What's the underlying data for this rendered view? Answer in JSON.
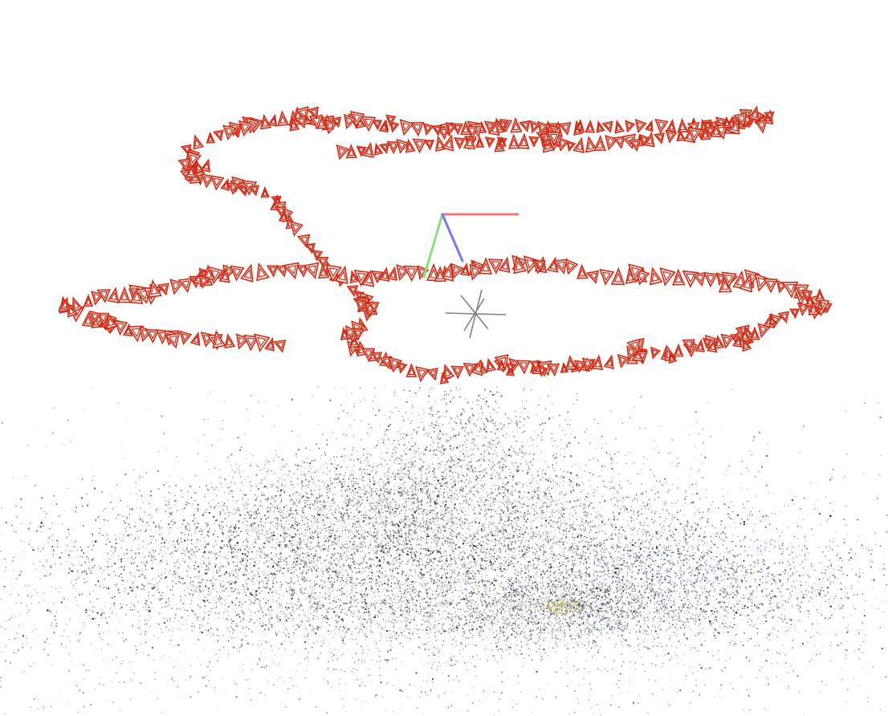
{
  "viewer": {
    "background": "#ffffff",
    "camera_color": "#d42a12",
    "axis_colors": {
      "x": "#e87a7a",
      "y": "#88e07a",
      "z": "#7a7ae8"
    },
    "pivot_color": "#808080",
    "point_cloud_colors": [
      "#2a2a2a",
      "#555555",
      "#7a7a7a",
      "#a09e98",
      "#c4c0b8",
      "#3b5f9a",
      "#5a7db8",
      "#8ca0c8",
      "#b0a64a"
    ]
  }
}
